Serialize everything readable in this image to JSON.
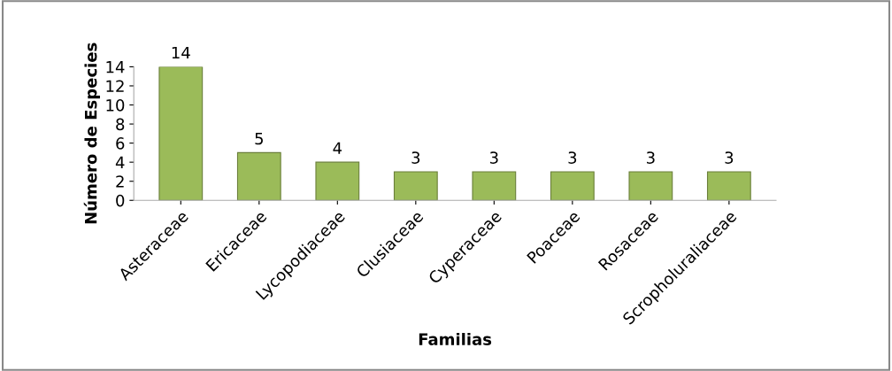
{
  "chart_data": {
    "type": "bar",
    "xlabel": "Familias",
    "ylabel": "Número de Especies",
    "categories": [
      "Asteraceae",
      "Ericaceae",
      "Lycopodiaceae",
      "Clusiaceae",
      "Cyperaceae",
      "Poaceae",
      "Rosaceae",
      "Scropholuraliaceae"
    ],
    "values": [
      14,
      5,
      4,
      3,
      3,
      3,
      3,
      3
    ],
    "color": "#9bbb59",
    "ylim": [
      0,
      14
    ],
    "yticks": [
      0,
      2,
      4,
      6,
      8,
      10,
      12,
      14
    ],
    "grid": false,
    "data_labels": true
  }
}
